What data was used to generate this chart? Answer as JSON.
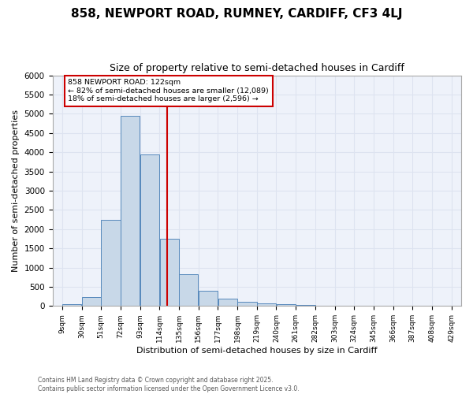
{
  "title1": "858, NEWPORT ROAD, RUMNEY, CARDIFF, CF3 4LJ",
  "title2": "Size of property relative to semi-detached houses in Cardiff",
  "xlabel": "Distribution of semi-detached houses by size in Cardiff",
  "ylabel": "Number of semi-detached properties",
  "footer": "Contains HM Land Registry data © Crown copyright and database right 2025.\nContains public sector information licensed under the Open Government Licence v3.0.",
  "bin_labels": [
    "9sqm",
    "30sqm",
    "51sqm",
    "72sqm",
    "93sqm",
    "114sqm",
    "135sqm",
    "156sqm",
    "177sqm",
    "198sqm",
    "219sqm",
    "240sqm",
    "261sqm",
    "282sqm",
    "303sqm",
    "324sqm",
    "345sqm",
    "366sqm",
    "387sqm",
    "408sqm",
    "429sqm"
  ],
  "bin_edges": [
    9,
    30,
    51,
    72,
    93,
    114,
    135,
    156,
    177,
    198,
    219,
    240,
    261,
    282,
    303,
    324,
    345,
    366,
    387,
    408,
    429
  ],
  "bar_heights": [
    50,
    230,
    2250,
    4950,
    3950,
    1750,
    820,
    400,
    185,
    100,
    65,
    55,
    30,
    10,
    5,
    5,
    5,
    3,
    3,
    2
  ],
  "bar_color": "#c8d8e8",
  "bar_edge_color": "#5588bb",
  "property_value": 122,
  "vline_color": "#cc0000",
  "annotation_text": "858 NEWPORT ROAD: 122sqm\n← 82% of semi-detached houses are smaller (12,089)\n18% of semi-detached houses are larger (2,596) →",
  "annotation_box_color": "#cc0000",
  "ylim": [
    0,
    6000
  ],
  "yticks": [
    0,
    500,
    1000,
    1500,
    2000,
    2500,
    3000,
    3500,
    4000,
    4500,
    5000,
    5500,
    6000
  ],
  "grid_color": "#dde3f0",
  "bg_color": "#eef2fa"
}
